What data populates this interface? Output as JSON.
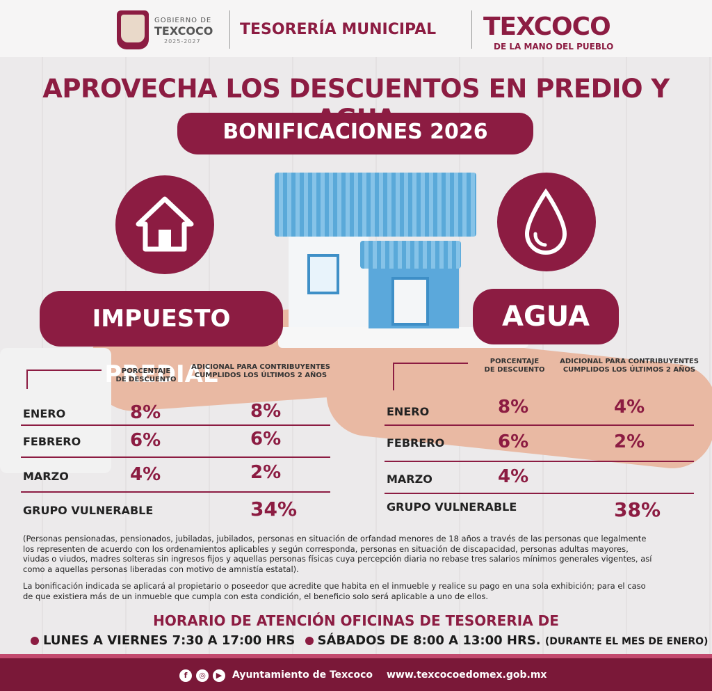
{
  "header": {
    "gobierno_small": "GOBIERNO DE",
    "gobierno_big": "TEXCOCO",
    "gobierno_years": "2025-2027",
    "tesoreria": "TESORERÍA MUNICIPAL",
    "texcoco_logo": "TEXCOCO",
    "texcoco_slogan": "DE LA MANO DEL PUEBLO"
  },
  "headline": "APROVECHA LOS DESCUENTOS EN PREDIO Y AGUA",
  "bonificaciones": "BONIFICACIONES 2026",
  "predial": {
    "title": "IMPUESTO PREDIAL",
    "icon": "house-icon",
    "col_pct": [
      "PORCENTAJE",
      "DE DESCUENTO"
    ],
    "col_adicional": [
      "ADICIONAL PARA CONTRIBUYENTES",
      "CUMPLIDOS LOS ÚLTIMOS 2 AÑOS"
    ],
    "rows": [
      {
        "label": "ENERO",
        "pct": "8%",
        "adicional": "8%"
      },
      {
        "label": "FEBRERO",
        "pct": "6%",
        "adicional": "6%"
      },
      {
        "label": "MARZO",
        "pct": "4%",
        "adicional": "2%"
      }
    ],
    "vulnerable_label": "GRUPO VULNERABLE",
    "vulnerable_value": "34%"
  },
  "agua": {
    "title": "AGUA",
    "icon": "water-drop-icon",
    "col_pct": [
      "PORCENTAJE",
      "DE DESCUENTO"
    ],
    "col_adicional": [
      "ADICIONAL PARA CONTRIBUYENTES",
      "CUMPLIDOS LOS ÚLTIMOS 2 AÑOS"
    ],
    "rows": [
      {
        "label": "ENERO",
        "pct": "8%",
        "adicional": "4%"
      },
      {
        "label": "FEBRERO",
        "pct": "6%",
        "adicional": "2%"
      },
      {
        "label": "MARZO",
        "pct": "4%",
        "adicional": ""
      }
    ],
    "vulnerable_label": "GRUPO VULNERABLE",
    "vulnerable_value": "38%"
  },
  "notes": {
    "vulnerable": [
      "(Personas pensionadas, pensionados, jubiladas, jubilados, personas en situación de orfandad menores de 18 años a través de las personas que legalmente",
      "los representen de acuerdo con los ordenamientos aplicables y según corresponda, personas en situación de discapacidad, personas adultas mayores,",
      "viudas o viudos, madres solteras sin ingresos fijos y aquellas personas físicas cuya percepción diaria no rebase tres salarios mínimos generales vigentes, así",
      "como a aquellas personas liberadas con motivo de amnistía estatal)."
    ],
    "bonificacion": [
      "La bonificación indicada se aplicará al propietario o poseedor que acredite que habita en el inmueble y realice su pago en una sola exhibición; para el caso",
      "de que existiera más de un inmueble que cumpla con esta condición, el beneficio solo será aplicable a uno de ellos."
    ]
  },
  "horario": {
    "title": "HORARIO DE ATENCIÓN OFICINAS DE TESORERIA DE",
    "weekday": "LUNES A VIERNES 7:30 A 17:00 HRS",
    "saturday": "SÁBADOS DE 8:00 A 13:00 HRS.",
    "note": "(DURANTE EL MES DE ENERO)"
  },
  "footer": {
    "social_icons": [
      "facebook-icon",
      "instagram-icon",
      "youtube-icon"
    ],
    "account": "Ayuntamiento de Texcoco",
    "website": "www.texcocoedomex.gob.mx"
  },
  "colors": {
    "brand": "#8c1c42",
    "footer": "#7a1838"
  }
}
